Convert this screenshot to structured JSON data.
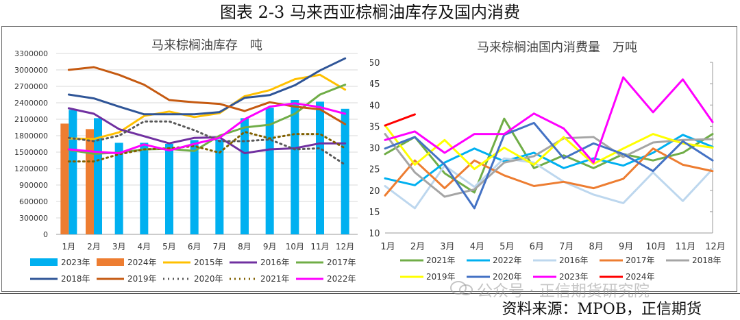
{
  "figure_title": "图表 2-3 马来西亚棕榈油库存及国内消费",
  "source": "资料来源：MPOB，正信期货",
  "watermark": "公众号 · 正信期货研究院",
  "chart_data": [
    {
      "type": "bar+line",
      "title": "马来棕榈油库存　吨",
      "categories": [
        "1月",
        "2月",
        "3月",
        "4月",
        "5月",
        "6月",
        "7月",
        "8月",
        "9月",
        "10月",
        "11月",
        "12月"
      ],
      "ylim": [
        0,
        3300000
      ],
      "yticks": [
        "0",
        "300000",
        "600000",
        "900000",
        "1200000",
        "1500000",
        "1800000",
        "2100000",
        "2400000",
        "2700000",
        "3000000",
        "3300000"
      ],
      "grid": true,
      "legend_position": "bottom",
      "bars": [
        {
          "name": "2023年",
          "color": "#00b0f0",
          "values": [
            2270000,
            2120000,
            1670000,
            1670000,
            1650000,
            1720000,
            1730000,
            2120000,
            2310000,
            2450000,
            2420000,
            2290000
          ]
        },
        {
          "name": "2024年",
          "color": "#ed7d31",
          "values": [
            2020000,
            1920000,
            null,
            null,
            null,
            null,
            null,
            null,
            null,
            null,
            null,
            null
          ]
        }
      ],
      "lines": [
        {
          "name": "2015年",
          "color": "#ffc000",
          "style": "solid",
          "values": [
            1750000,
            1740000,
            1860000,
            2160000,
            2240000,
            2140000,
            2210000,
            2520000,
            2630000,
            2830000,
            2910000,
            2640000
          ]
        },
        {
          "name": "2016年",
          "color": "#7030a0",
          "style": "solid",
          "values": [
            2300000,
            2200000,
            1920000,
            1790000,
            1660000,
            1760000,
            1770000,
            1480000,
            1550000,
            1570000,
            1660000,
            1660000
          ]
        },
        {
          "name": "2017年",
          "color": "#70ad47",
          "style": "solid",
          "values": [
            1540000,
            1470000,
            1490000,
            1550000,
            1560000,
            1520000,
            1800000,
            1950000,
            2000000,
            2200000,
            2550000,
            2730000
          ]
        },
        {
          "name": "2018年",
          "color": "#2f5597",
          "style": "solid",
          "values": [
            2550000,
            2480000,
            2330000,
            2190000,
            2190000,
            2190000,
            2230000,
            2490000,
            2540000,
            2720000,
            2990000,
            3210000
          ]
        },
        {
          "name": "2019年",
          "color": "#c55a11",
          "style": "solid",
          "values": [
            3000000,
            3050000,
            2910000,
            2730000,
            2450000,
            2410000,
            2380000,
            2250000,
            2410000,
            2330000,
            2280000,
            2010000
          ]
        },
        {
          "name": "2020年",
          "color": "#595959",
          "style": "dotted",
          "values": [
            1760000,
            1700000,
            1800000,
            2060000,
            2060000,
            1900000,
            1700000,
            1700000,
            1730000,
            1550000,
            1570000,
            1270000
          ]
        },
        {
          "name": "2021年",
          "color": "#806000",
          "style": "dotted",
          "values": [
            1330000,
            1330000,
            1460000,
            1550000,
            1570000,
            1610000,
            1490000,
            1870000,
            1750000,
            1830000,
            1830000,
            1570000
          ]
        },
        {
          "name": "2022年",
          "color": "#ff00ff",
          "style": "solid",
          "values": [
            1550000,
            1510000,
            1480000,
            1640000,
            1530000,
            1650000,
            1760000,
            2100000,
            2330000,
            2390000,
            2320000,
            2200000
          ]
        }
      ]
    },
    {
      "type": "line",
      "title": "马来棕榈油国内消费量　万吨",
      "categories": [
        "1月",
        "2月",
        "3月",
        "4月",
        "5月",
        "6月",
        "7月",
        "8月",
        "9月",
        "10月",
        "11月",
        "12月"
      ],
      "ylim": [
        10,
        50
      ],
      "yticks": [
        "10",
        "15",
        "20",
        "25",
        "30",
        "35",
        "40",
        "45",
        "50"
      ],
      "grid": false,
      "legend_position": "bottom",
      "series": [
        {
          "name": "2021年",
          "color": "#70ad47",
          "values": [
            28.5,
            32.5,
            24,
            19.5,
            36.8,
            25.2,
            28.2,
            25.2,
            28.5,
            27,
            28.8,
            33.2
          ]
        },
        {
          "name": "2022年",
          "color": "#00b0f0",
          "values": [
            22.8,
            21.2,
            26.5,
            29.8,
            26.8,
            28.8,
            25.2,
            27.5,
            25.8,
            28.8,
            33,
            30.2
          ]
        },
        {
          "name": "2016年",
          "color": "#bdd7ee",
          "values": [
            21,
            15.8,
            25.8,
            20.8,
            27.5,
            26.5,
            22,
            19,
            17,
            24.2,
            17.5,
            25
          ]
        },
        {
          "name": "2017年",
          "color": "#ed7d31",
          "values": [
            18.8,
            27,
            20.5,
            27,
            23.5,
            21,
            22,
            20.5,
            22.7,
            29.8,
            26,
            24.5
          ]
        },
        {
          "name": "2018年",
          "color": "#a5a5a5",
          "values": [
            33.2,
            24.2,
            18.5,
            20.2,
            26.5,
            28,
            32.2,
            32.5,
            27.8,
            31.2,
            31.8,
            32
          ]
        },
        {
          "name": "2019年",
          "color": "#ffff00",
          "values": [
            35.2,
            26,
            31.8,
            25,
            30,
            26,
            32.5,
            26.2,
            29.8,
            33.2,
            31,
            30
          ]
        },
        {
          "name": "2020年",
          "color": "#4472c4",
          "values": [
            29.8,
            32.5,
            26,
            15.8,
            33,
            35.8,
            27.5,
            31,
            28.5,
            24.5,
            31.5,
            27
          ]
        },
        {
          "name": "2023年",
          "color": "#ff00ff",
          "values": [
            31.8,
            33.8,
            28.8,
            33.2,
            33.2,
            38,
            34.5,
            26.5,
            46.5,
            38.3,
            46,
            36
          ]
        },
        {
          "name": "2024年",
          "color": "#ff0000",
          "values": [
            35.2,
            37.8,
            null,
            null,
            null,
            null,
            null,
            null,
            null,
            null,
            null,
            null
          ]
        }
      ]
    }
  ]
}
